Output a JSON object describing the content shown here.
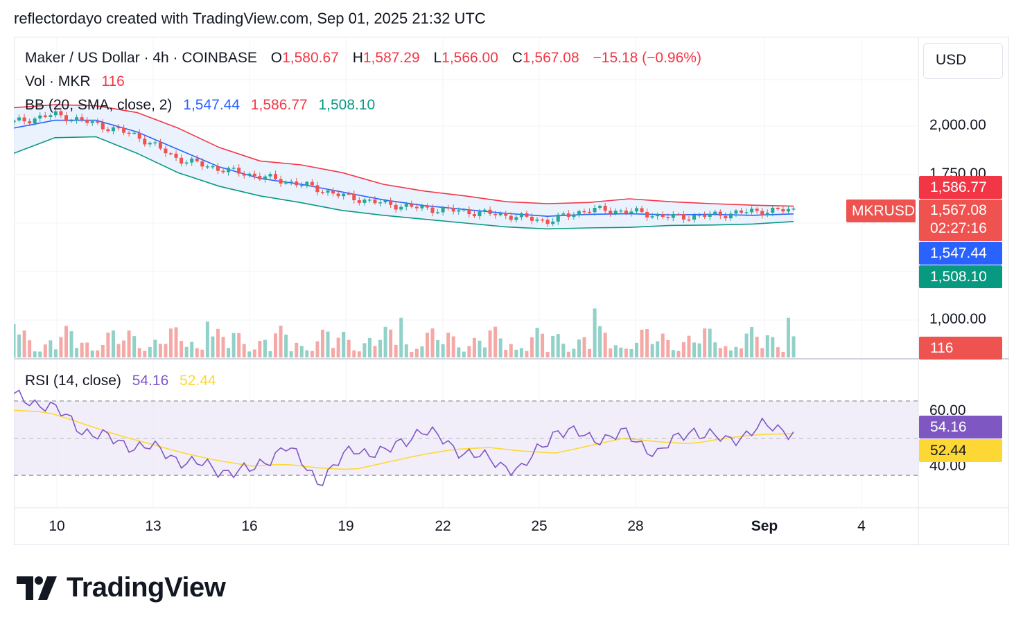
{
  "header": {
    "caption": "reflectordayo created with TradingView.com, Sep 01, 2025 21:32 UTC"
  },
  "symbol": {
    "name": "Maker / US Dollar · 4h · COINBASE",
    "open_label": "O",
    "open": "1,580.67",
    "high_label": "H",
    "high": "1,587.29",
    "low_label": "L",
    "low": "1,566.00",
    "close_label": "C",
    "close": "1,567.08",
    "change": "−15.18 (−0.96%)",
    "ticker": "MKRUSD",
    "countdown": "02:27:16"
  },
  "volume_legend": {
    "label": "Vol · MKR",
    "value": "116"
  },
  "bb_legend": {
    "label": "BB (20, SMA, close, 2)",
    "basis": "1,547.44",
    "upper": "1,586.77",
    "lower": "1,508.10"
  },
  "rsi_legend": {
    "label": "RSI (14, close)",
    "rsi": "54.16",
    "ma": "52.44"
  },
  "currency": "USD",
  "price_axis": {
    "ticks": [
      "2,000.00",
      "1,750.00",
      "1,000.00"
    ],
    "labels": {
      "upper": "1,586.77",
      "close": "1,567.08",
      "basis": "1,547.44",
      "lower": "1,508.10",
      "volume": "116"
    }
  },
  "rsi_axis": {
    "ticks": [
      "60.00",
      "40.00"
    ],
    "labels": {
      "rsi": "54.16",
      "ma": "52.44"
    }
  },
  "date_axis": [
    "10",
    "13",
    "16",
    "19",
    "22",
    "25",
    "28",
    "Sep",
    "4"
  ],
  "brand": {
    "name": "TradingView"
  },
  "colors": {
    "up": "#26a69a",
    "down": "#ef5350",
    "bb_basis": "#2962ff",
    "bb_upper": "#f23645",
    "bb_lower": "#089981",
    "bb_fill": "#e3effd",
    "rsi": "#7e57c2",
    "rsi_ma": "#fdd835",
    "rsi_band": "#ede7f6",
    "volume_up": "#92d1c8",
    "volume_down": "#f5a9a7"
  },
  "chart_data": [
    {
      "type": "line",
      "title": "Maker / US Dollar · 4h · COINBASE",
      "x_start": "Aug 9, 2025",
      "x_end": "Sep 1, 2025",
      "y_unit": "USD",
      "series": [
        {
          "name": "BB upper",
          "values": [
            2095,
            2110,
            2105,
            2070,
            1990,
            1890,
            1820,
            1800,
            1760,
            1700,
            1665,
            1640,
            1610,
            1600,
            1606,
            1625,
            1610,
            1600,
            1592,
            1587
          ]
        },
        {
          "name": "BB basis",
          "values": [
            1990,
            2030,
            2030,
            1970,
            1880,
            1790,
            1730,
            1700,
            1660,
            1620,
            1590,
            1570,
            1550,
            1535,
            1545,
            1548,
            1542,
            1545,
            1540,
            1547
          ]
        },
        {
          "name": "BB lower",
          "values": [
            1860,
            1940,
            1945,
            1860,
            1760,
            1690,
            1640,
            1605,
            1565,
            1540,
            1520,
            1500,
            1480,
            1470,
            1475,
            1478,
            1488,
            1490,
            1495,
            1508
          ]
        },
        {
          "name": "Close",
          "values": [
            2020,
            2060,
            2010,
            1950,
            1830,
            1780,
            1740,
            1700,
            1640,
            1600,
            1575,
            1560,
            1540,
            1510,
            1570,
            1560,
            1530,
            1540,
            1560,
            1567
          ]
        }
      ]
    },
    {
      "type": "line",
      "title": "RSI (14, close)",
      "ylim": [
        20,
        80
      ],
      "series": [
        {
          "name": "RSI",
          "values": [
            72,
            68,
            55,
            48,
            45,
            38,
            33,
            32,
            46,
            27,
            44,
            42,
            55,
            45,
            38,
            33,
            55,
            50,
            52,
            42,
            55,
            48,
            56,
            54
          ]
        },
        {
          "name": "RSI MA",
          "values": [
            65,
            64,
            58,
            52,
            47,
            42,
            38,
            35,
            36,
            34,
            33,
            37,
            41,
            44,
            45,
            43,
            42,
            46,
            50,
            48,
            47,
            50,
            52,
            52.44
          ]
        }
      ]
    }
  ]
}
